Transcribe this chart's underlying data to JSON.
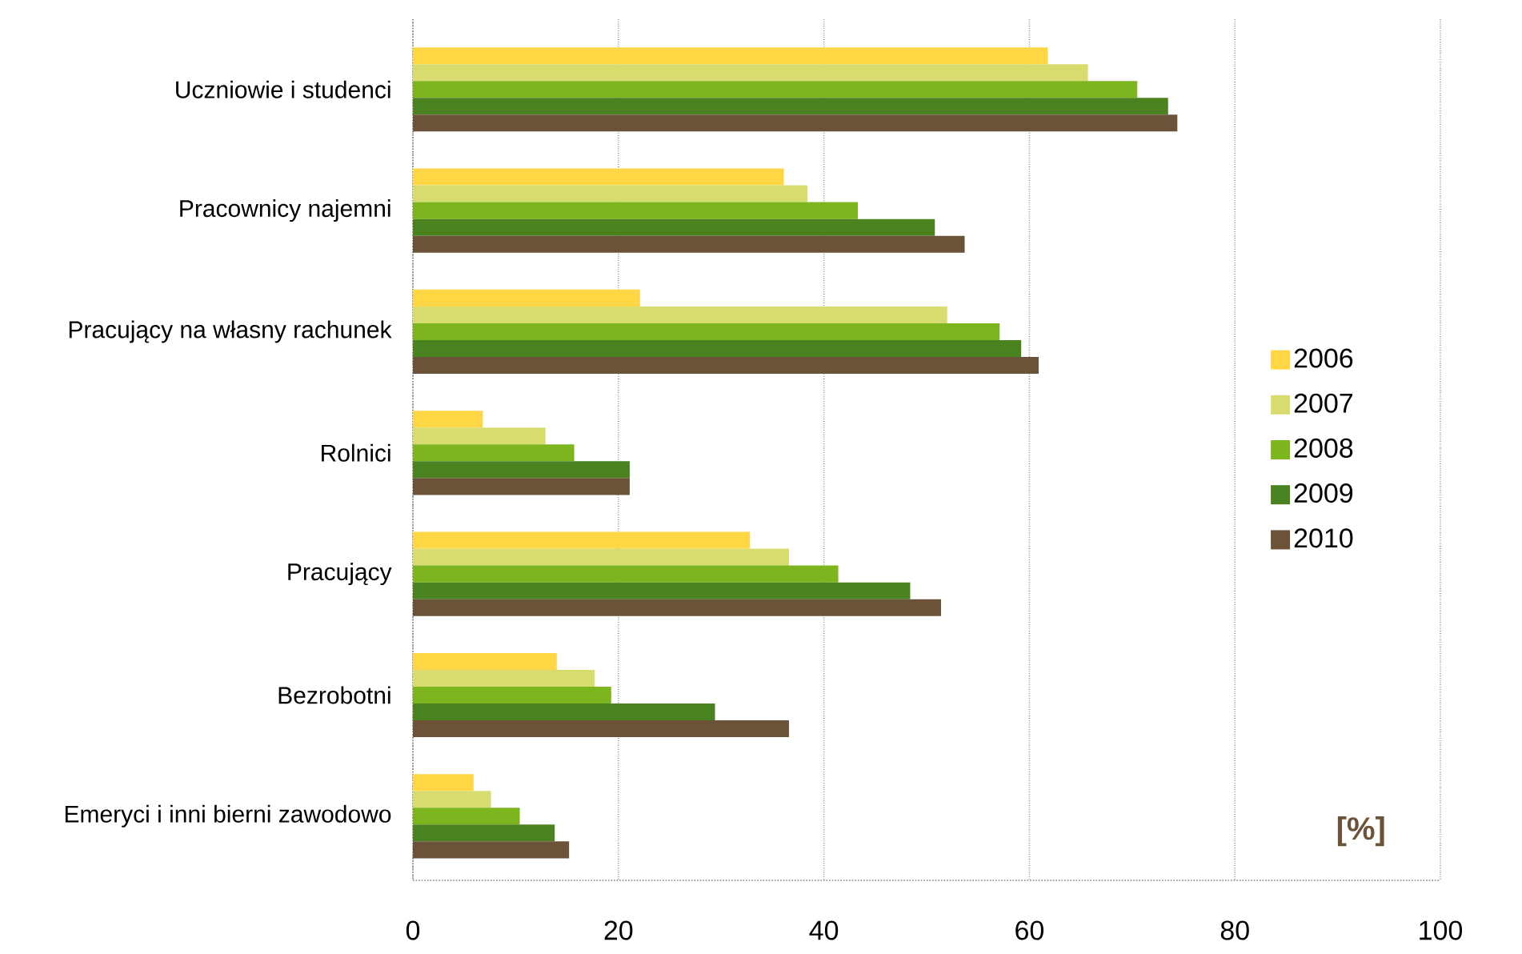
{
  "chart_data": {
    "type": "bar",
    "orientation": "horizontal",
    "categories": [
      "Uczniowie i studenci",
      "Pracownicy najemni",
      "Pracujący na własny rachunek",
      "Rolnici",
      "Pracujący",
      "Bezrobotni",
      "Emeryci i inni bierni zawodowo"
    ],
    "series": [
      {
        "name": "2006",
        "color": "#ffd745",
        "values": [
          61.8,
          36.1,
          22.1,
          6.8,
          32.8,
          14.0,
          5.9
        ]
      },
      {
        "name": "2007",
        "color": "#d8dc6e",
        "values": [
          65.7,
          38.4,
          52.0,
          12.9,
          36.6,
          17.7,
          7.6
        ]
      },
      {
        "name": "2008",
        "color": "#7db51f",
        "values": [
          70.5,
          43.3,
          57.1,
          15.7,
          41.4,
          19.3,
          10.4
        ]
      },
      {
        "name": "2009",
        "color": "#4a8220",
        "values": [
          73.5,
          50.8,
          59.2,
          21.1,
          48.4,
          29.4,
          13.8
        ]
      },
      {
        "name": "2010",
        "color": "#6b533a",
        "values": [
          74.4,
          53.7,
          60.9,
          21.1,
          51.4,
          36.6,
          15.2
        ]
      }
    ],
    "xlim": [
      0,
      100
    ],
    "xticks": [
      0,
      20,
      40,
      60,
      80,
      100
    ],
    "grid": "x",
    "legend": "right",
    "annotations": [
      "[%]"
    ]
  }
}
